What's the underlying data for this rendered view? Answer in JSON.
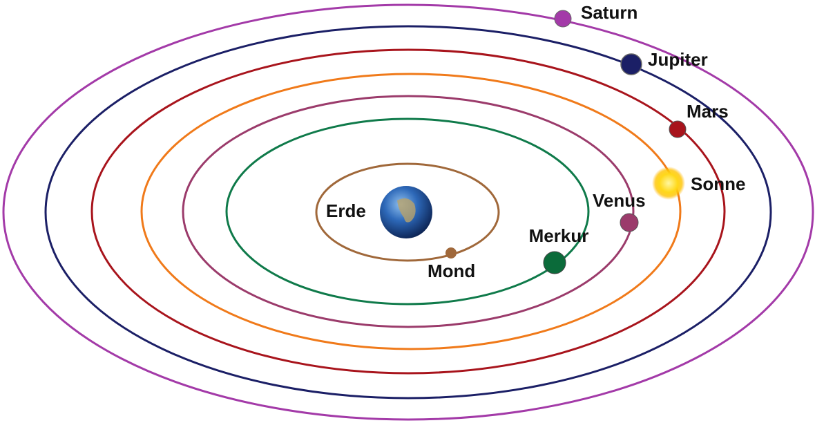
{
  "nodes": [
    {
      "label": "Erde"
    },
    {
      "label": "Mond"
    },
    {
      "label": "Merkur"
    },
    {
      "label": "Venus"
    },
    {
      "label": "Sonne"
    },
    {
      "label": "Mars"
    },
    {
      "label": "Jupiter"
    },
    {
      "label": "Saturn"
    }
  ]
}
